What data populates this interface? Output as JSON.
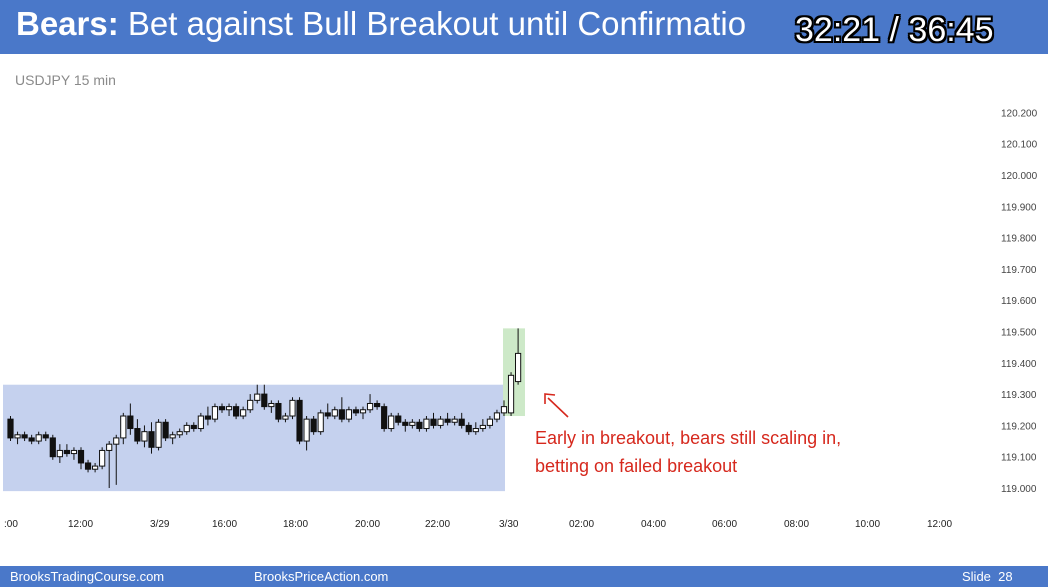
{
  "header": {
    "title_bold": "Bears:",
    "title_rest": " Bet against Bull Breakout until Confirmatio",
    "timer": "32:21 / 36:45"
  },
  "footer": {
    "left": "BrooksTradingCourse.com",
    "middle": "BrooksPriceAction.com",
    "slide": "Slide",
    "slide_number": "28"
  },
  "colors": {
    "header_bg": "#4a78c9",
    "range_box": "#c5d1ee",
    "breakout_box": "#cde9c8",
    "annotation": "#d6281d"
  },
  "chart_data": {
    "type": "candlestick",
    "symbol_label": "USDJPY 15 min",
    "y_ticks": [
      "119.000",
      "119.100",
      "119.200",
      "119.300",
      "119.400",
      "119.500",
      "119.600",
      "119.700",
      "119.800",
      "119.900",
      "120.000",
      "120.100",
      "120.200"
    ],
    "ylim": [
      118.95,
      120.25
    ],
    "x_tick_labels": [
      ":00",
      "12:00",
      "3/29",
      "16:00",
      "18:00",
      "20:00",
      "22:00",
      "3/30",
      "02:00",
      "04:00",
      "06:00",
      "08:00",
      "10:00",
      "12:00"
    ],
    "trading_range_box": {
      "y_low": 118.99,
      "y_high": 119.33,
      "from_bar": 0,
      "to_bar": 70
    },
    "breakout_box": {
      "y_low": 119.23,
      "y_high": 119.51,
      "from_bar": 71,
      "to_bar": 72
    },
    "annotation": {
      "line1": "Early in breakout, bears still scaling in,",
      "line2": "betting on failed breakout"
    },
    "candles": [
      {
        "o": 119.22,
        "h": 119.23,
        "l": 119.15,
        "c": 119.16
      },
      {
        "o": 119.16,
        "h": 119.18,
        "l": 119.14,
        "c": 119.17
      },
      {
        "o": 119.17,
        "h": 119.18,
        "l": 119.15,
        "c": 119.16
      },
      {
        "o": 119.16,
        "h": 119.17,
        "l": 119.14,
        "c": 119.15
      },
      {
        "o": 119.15,
        "h": 119.18,
        "l": 119.14,
        "c": 119.17
      },
      {
        "o": 119.17,
        "h": 119.18,
        "l": 119.15,
        "c": 119.16
      },
      {
        "o": 119.16,
        "h": 119.17,
        "l": 119.09,
        "c": 119.1
      },
      {
        "o": 119.1,
        "h": 119.14,
        "l": 119.08,
        "c": 119.12
      },
      {
        "o": 119.12,
        "h": 119.14,
        "l": 119.1,
        "c": 119.11
      },
      {
        "o": 119.11,
        "h": 119.13,
        "l": 119.09,
        "c": 119.12
      },
      {
        "o": 119.12,
        "h": 119.13,
        "l": 119.06,
        "c": 119.08
      },
      {
        "o": 119.08,
        "h": 119.09,
        "l": 119.05,
        "c": 119.06
      },
      {
        "o": 119.06,
        "h": 119.08,
        "l": 119.05,
        "c": 119.07
      },
      {
        "o": 119.07,
        "h": 119.13,
        "l": 119.06,
        "c": 119.12
      },
      {
        "o": 119.12,
        "h": 119.15,
        "l": 119.0,
        "c": 119.14
      },
      {
        "o": 119.14,
        "h": 119.17,
        "l": 119.01,
        "c": 119.16
      },
      {
        "o": 119.16,
        "h": 119.24,
        "l": 119.14,
        "c": 119.23
      },
      {
        "o": 119.23,
        "h": 119.27,
        "l": 119.17,
        "c": 119.19
      },
      {
        "o": 119.19,
        "h": 119.22,
        "l": 119.14,
        "c": 119.15
      },
      {
        "o": 119.15,
        "h": 119.2,
        "l": 119.13,
        "c": 119.18
      },
      {
        "o": 119.18,
        "h": 119.21,
        "l": 119.11,
        "c": 119.13
      },
      {
        "o": 119.13,
        "h": 119.22,
        "l": 119.12,
        "c": 119.21
      },
      {
        "o": 119.21,
        "h": 119.22,
        "l": 119.15,
        "c": 119.16
      },
      {
        "o": 119.16,
        "h": 119.18,
        "l": 119.14,
        "c": 119.17
      },
      {
        "o": 119.17,
        "h": 119.19,
        "l": 119.16,
        "c": 119.18
      },
      {
        "o": 119.18,
        "h": 119.21,
        "l": 119.17,
        "c": 119.2
      },
      {
        "o": 119.2,
        "h": 119.21,
        "l": 119.18,
        "c": 119.19
      },
      {
        "o": 119.19,
        "h": 119.24,
        "l": 119.18,
        "c": 119.23
      },
      {
        "o": 119.23,
        "h": 119.26,
        "l": 119.2,
        "c": 119.22
      },
      {
        "o": 119.22,
        "h": 119.27,
        "l": 119.21,
        "c": 119.26
      },
      {
        "o": 119.26,
        "h": 119.27,
        "l": 119.24,
        "c": 119.25
      },
      {
        "o": 119.25,
        "h": 119.27,
        "l": 119.23,
        "c": 119.26
      },
      {
        "o": 119.26,
        "h": 119.27,
        "l": 119.22,
        "c": 119.23
      },
      {
        "o": 119.23,
        "h": 119.26,
        "l": 119.22,
        "c": 119.25
      },
      {
        "o": 119.25,
        "h": 119.3,
        "l": 119.24,
        "c": 119.28
      },
      {
        "o": 119.28,
        "h": 119.33,
        "l": 119.27,
        "c": 119.3
      },
      {
        "o": 119.3,
        "h": 119.33,
        "l": 119.25,
        "c": 119.26
      },
      {
        "o": 119.26,
        "h": 119.28,
        "l": 119.24,
        "c": 119.27
      },
      {
        "o": 119.27,
        "h": 119.28,
        "l": 119.21,
        "c": 119.22
      },
      {
        "o": 119.22,
        "h": 119.24,
        "l": 119.21,
        "c": 119.23
      },
      {
        "o": 119.23,
        "h": 119.29,
        "l": 119.22,
        "c": 119.28
      },
      {
        "o": 119.28,
        "h": 119.29,
        "l": 119.14,
        "c": 119.15
      },
      {
        "o": 119.15,
        "h": 119.23,
        "l": 119.12,
        "c": 119.22
      },
      {
        "o": 119.22,
        "h": 119.23,
        "l": 119.17,
        "c": 119.18
      },
      {
        "o": 119.18,
        "h": 119.25,
        "l": 119.17,
        "c": 119.24
      },
      {
        "o": 119.24,
        "h": 119.27,
        "l": 119.22,
        "c": 119.23
      },
      {
        "o": 119.23,
        "h": 119.26,
        "l": 119.22,
        "c": 119.25
      },
      {
        "o": 119.25,
        "h": 119.29,
        "l": 119.21,
        "c": 119.22
      },
      {
        "o": 119.22,
        "h": 119.26,
        "l": 119.21,
        "c": 119.25
      },
      {
        "o": 119.25,
        "h": 119.26,
        "l": 119.23,
        "c": 119.24
      },
      {
        "o": 119.24,
        "h": 119.26,
        "l": 119.22,
        "c": 119.25
      },
      {
        "o": 119.25,
        "h": 119.3,
        "l": 119.24,
        "c": 119.27
      },
      {
        "o": 119.27,
        "h": 119.28,
        "l": 119.25,
        "c": 119.26
      },
      {
        "o": 119.26,
        "h": 119.27,
        "l": 119.18,
        "c": 119.19
      },
      {
        "o": 119.19,
        "h": 119.24,
        "l": 119.18,
        "c": 119.23
      },
      {
        "o": 119.23,
        "h": 119.24,
        "l": 119.2,
        "c": 119.21
      },
      {
        "o": 119.21,
        "h": 119.22,
        "l": 119.18,
        "c": 119.2
      },
      {
        "o": 119.2,
        "h": 119.22,
        "l": 119.19,
        "c": 119.21
      },
      {
        "o": 119.21,
        "h": 119.22,
        "l": 119.18,
        "c": 119.19
      },
      {
        "o": 119.19,
        "h": 119.23,
        "l": 119.18,
        "c": 119.22
      },
      {
        "o": 119.22,
        "h": 119.24,
        "l": 119.19,
        "c": 119.2
      },
      {
        "o": 119.2,
        "h": 119.23,
        "l": 119.19,
        "c": 119.22
      },
      {
        "o": 119.22,
        "h": 119.24,
        "l": 119.2,
        "c": 119.21
      },
      {
        "o": 119.21,
        "h": 119.23,
        "l": 119.2,
        "c": 119.22
      },
      {
        "o": 119.22,
        "h": 119.24,
        "l": 119.19,
        "c": 119.2
      },
      {
        "o": 119.2,
        "h": 119.21,
        "l": 119.17,
        "c": 119.18
      },
      {
        "o": 119.18,
        "h": 119.21,
        "l": 119.17,
        "c": 119.19
      },
      {
        "o": 119.19,
        "h": 119.22,
        "l": 119.18,
        "c": 119.2
      },
      {
        "o": 119.2,
        "h": 119.23,
        "l": 119.19,
        "c": 119.22
      },
      {
        "o": 119.22,
        "h": 119.25,
        "l": 119.21,
        "c": 119.24
      },
      {
        "o": 119.24,
        "h": 119.28,
        "l": 119.23,
        "c": 119.26
      },
      {
        "o": 119.24,
        "h": 119.37,
        "l": 119.23,
        "c": 119.36
      },
      {
        "o": 119.34,
        "h": 119.51,
        "l": 119.33,
        "c": 119.43
      }
    ]
  }
}
